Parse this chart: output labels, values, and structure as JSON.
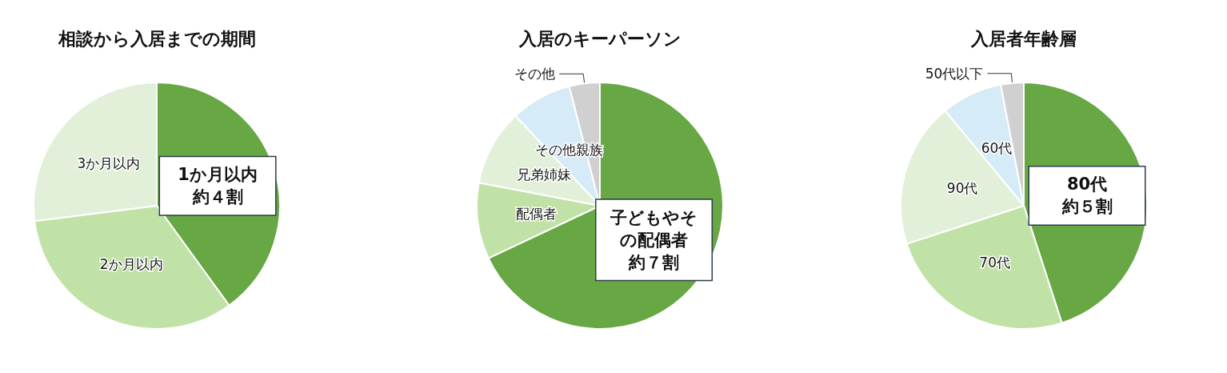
{
  "chart_data": [
    {
      "type": "pie",
      "title": "相談から入居までの期間",
      "categories": [
        "1か月以内",
        "2か月以内",
        "3か月以内"
      ],
      "values": [
        40,
        33,
        27
      ],
      "colors": [
        "#67a744",
        "#c1e2a6",
        "#e2f0d9"
      ],
      "value_labels": [
        "約４割",
        null,
        null
      ],
      "legend": false
    },
    {
      "type": "pie",
      "title": "入居のキーパーソン",
      "categories": [
        "子どもやその配偶者",
        "配偶者",
        "兄弟姉妹",
        "その他親族",
        "その他"
      ],
      "values": [
        68,
        10,
        10,
        8,
        4
      ],
      "colors": [
        "#67a744",
        "#c1e2a6",
        "#e2f0d9",
        "#d5ebf7",
        "#d0d0d0"
      ],
      "value_labels": [
        "約７割",
        null,
        null,
        null,
        null
      ],
      "legend": false
    },
    {
      "type": "pie",
      "title": "入居者年齢層",
      "categories": [
        "80代",
        "70代",
        "90代",
        "60代",
        "50代以下"
      ],
      "values": [
        45,
        25,
        19,
        8,
        3
      ],
      "colors": [
        "#67a744",
        "#c1e2a6",
        "#e2f0d9",
        "#d5ebf7",
        "#d0d0d0"
      ],
      "value_labels": [
        "約５割",
        null,
        null,
        null,
        null
      ],
      "legend": false
    }
  ]
}
